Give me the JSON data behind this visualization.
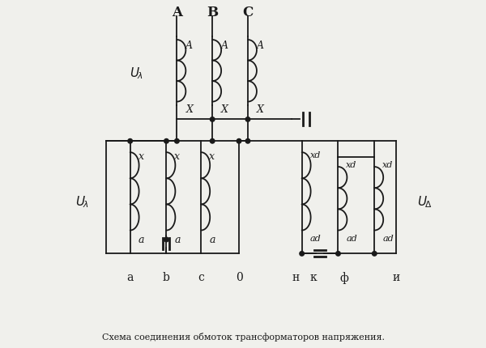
{
  "title": "Схема соединения обмоток трансформаторов напряжения.",
  "bg_color": "#f0f0ec",
  "line_color": "#1a1a1a",
  "fig_width": 6.0,
  "fig_height": 4.31,
  "dpi": 100,
  "top_phase_labels": [
    "A",
    "B",
    "C"
  ],
  "top_A_label": "A",
  "top_X_label": "X",
  "sec_x_label": "x",
  "sec_a_label": "a",
  "sec_xd_label": "xd",
  "sec_ad_label": "ad",
  "U_Y_label": "U",
  "U_D_label": "U",
  "bottom_labels_left": [
    "a",
    "b",
    "c",
    "0"
  ],
  "bottom_labels_right": [
    "н",
    "к",
    "ф",
    "и"
  ]
}
